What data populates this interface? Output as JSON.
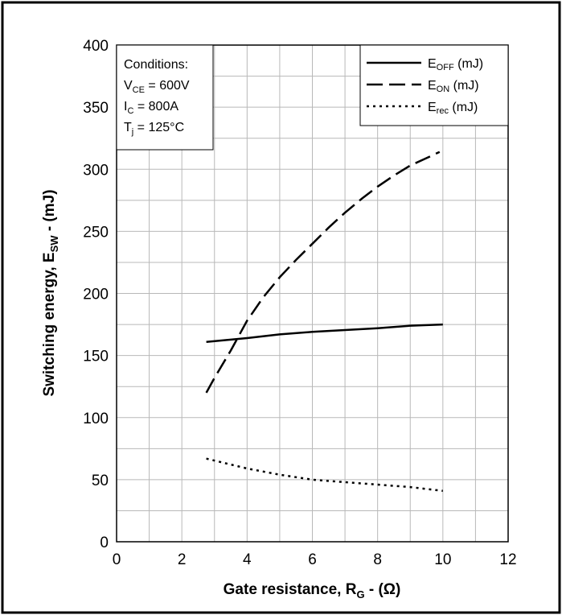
{
  "chart_data": {
    "type": "line",
    "xlabel": {
      "main": "Gate resistance, R",
      "sub": "G",
      "tail": " - (Ω)"
    },
    "ylabel": {
      "main": "Switching energy, E",
      "sub": "SW",
      "tail": " - (mJ)"
    },
    "xlim": [
      0,
      12
    ],
    "ylim": [
      0,
      400
    ],
    "x_ticks": [
      "0",
      "2",
      "4",
      "6",
      "8",
      "10",
      "12"
    ],
    "y_ticks": [
      "0",
      "50",
      "100",
      "150",
      "200",
      "250",
      "300",
      "350",
      "400"
    ],
    "grid": true,
    "legend_position": "top-right",
    "conditions": {
      "heading": "Conditions:",
      "lines": [
        {
          "main": "V",
          "sub": "CE",
          "tail": " = 600V"
        },
        {
          "main": "I",
          "sub": "C",
          "tail": " = 800A"
        },
        {
          "main": "T",
          "sub": "j",
          "tail": " = 125°C"
        }
      ]
    },
    "series": [
      {
        "name": "E_OFF (mJ)",
        "legend": {
          "main": "E",
          "sub": "OFF",
          "tail": " (mJ)"
        },
        "style": "solid",
        "x": [
          2.75,
          4,
          5,
          6,
          7,
          8,
          9,
          10
        ],
        "y": [
          161,
          164,
          167,
          169,
          170.5,
          172,
          174,
          175
        ]
      },
      {
        "name": "E_ON (mJ)",
        "legend": {
          "main": "E",
          "sub": "ON",
          "tail": " (mJ)"
        },
        "style": "dashed",
        "x": [
          2.75,
          3,
          3.5,
          4,
          4.5,
          5,
          5.5,
          6,
          6.5,
          7,
          7.5,
          8,
          8.5,
          9,
          9.5,
          9.9
        ],
        "y": [
          120,
          132,
          154,
          178,
          197,
          213,
          227,
          240,
          253,
          265,
          276,
          286,
          295,
          303,
          309,
          314
        ]
      },
      {
        "name": "E_rec (mJ)",
        "legend": {
          "main": "E",
          "sub": "rec",
          "tail": " (mJ)"
        },
        "style": "dotted",
        "x": [
          2.75,
          4,
          5,
          6,
          7,
          8,
          9,
          10
        ],
        "y": [
          67,
          59,
          54,
          50,
          48,
          46,
          44,
          41
        ]
      }
    ]
  }
}
